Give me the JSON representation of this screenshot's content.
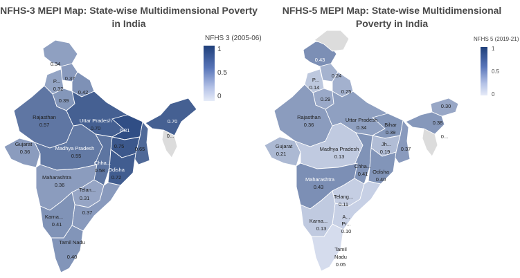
{
  "left": {
    "title": "NFHS-3 MEPI Map: State-wise Multidimensional Poverty in India",
    "legend": {
      "title": "NFHS 3 (2005-06)",
      "max": "1",
      "mid": "0.5",
      "min": "0"
    },
    "states": {
      "jk": {
        "value": 0.34,
        "value_text": "0.34"
      },
      "hp": {
        "value": 0.37,
        "value_text": "0.37"
      },
      "pb": {
        "name": "P...",
        "value": 0.32,
        "value_text": "0.32"
      },
      "uk": {
        "value": 0.42,
        "value_text": "0.42"
      },
      "hr": {
        "value": 0.39,
        "value_text": "0.39"
      },
      "rj": {
        "name": "Rajasthan",
        "value": 0.57,
        "value_text": "0.57"
      },
      "up": {
        "name": "Uttar Pradesh",
        "value": 0.7,
        "value_text": "0.70"
      },
      "br": {
        "value": 0.81,
        "value_text": "0.81"
      },
      "jh": {
        "value": 0.75,
        "value_text": "0.75"
      },
      "wb": {
        "value": 0.65,
        "value_text": "0.65"
      },
      "ne": {
        "value": 0.7,
        "value_text": "0.70"
      },
      "mz": {
        "name": "0...",
        "value": null
      },
      "gj": {
        "name": "Gujarat",
        "value": 0.36,
        "value_text": "0.36"
      },
      "mp": {
        "name": "Madhya Pradesh",
        "value": 0.55,
        "value_text": "0.55"
      },
      "cg": {
        "name": "Chha...",
        "value": 0.58,
        "value_text": "0.58"
      },
      "od": {
        "name": "Odisha",
        "value": 0.72,
        "value_text": "0.72"
      },
      "mh": {
        "name": "Maharashtra",
        "value": 0.36,
        "value_text": "0.36"
      },
      "tg": {
        "name": "Telan...",
        "value": 0.31,
        "value_text": "0.31"
      },
      "ap": {
        "value": 0.37,
        "value_text": "0.37"
      },
      "ka": {
        "name": "Karna...",
        "value": 0.41,
        "value_text": "0.41"
      },
      "tn": {
        "name": "Tamil Nadu",
        "value": 0.4,
        "value_text": "0.40"
      }
    }
  },
  "right": {
    "title": "NFHS-5 MEPI Map: State-wise Multidimensional Poverty in India",
    "legend": {
      "title": "NFHS 5 (2019-21)",
      "max": "1",
      "mid": "0.5",
      "min": "0"
    },
    "states": {
      "jk": {
        "value": 0.43,
        "value_text": "0.43"
      },
      "hp": {
        "value": 0.24,
        "value_text": "0.24"
      },
      "pb": {
        "name": "P...",
        "value": 0.14,
        "value_text": "0.14"
      },
      "uk": {
        "value": 0.25,
        "value_text": "0.25"
      },
      "hr": {
        "value": 0.29,
        "value_text": "0.29"
      },
      "rj": {
        "name": "Rajasthan",
        "value": 0.36,
        "value_text": "0.36"
      },
      "up": {
        "name": "Uttar Pradesh",
        "value": 0.34,
        "value_text": "0.34"
      },
      "br": {
        "name": "Bihar",
        "value": 0.39,
        "value_text": "0.39"
      },
      "jh": {
        "name": "Jh...",
        "value": 0.19,
        "value_text": "0.19"
      },
      "wb": {
        "value": 0.37,
        "value_text": "0.37"
      },
      "ar": {
        "value": 0.3,
        "value_text": "0.30"
      },
      "as": {
        "value": 0.38,
        "value_text": "0.38"
      },
      "mz": {
        "name": "0...",
        "value": null
      },
      "gj": {
        "name": "Gujarat",
        "value": 0.21,
        "value_text": "0.21"
      },
      "mp": {
        "name": "Madhya Pradesh",
        "value": 0.13,
        "value_text": "0.13"
      },
      "cg": {
        "name": "Chha...",
        "value": 0.41,
        "value_text": "0.41"
      },
      "od": {
        "name": "Odisha",
        "value": 0.4,
        "value_text": "0.40"
      },
      "mh": {
        "name": "Maharashtra",
        "value": 0.43,
        "value_text": "0.43"
      },
      "tg": {
        "name": "Telang...",
        "value": 0.11,
        "value_text": "0.11"
      },
      "ap": {
        "name_lines": [
          "A...",
          "Pr..."
        ],
        "value": 0.1,
        "value_text": "0.10"
      },
      "ka": {
        "name": "Karna...",
        "value": 0.13,
        "value_text": "0.13"
      },
      "tn": {
        "name_lines": [
          "Tamil",
          "Nadu"
        ],
        "value": 0.05,
        "value_text": "0.05"
      }
    }
  },
  "colors": {
    "na": "#dcdcdc",
    "scale_low": "#e6ebf8",
    "scale_high": "#1f3f7a"
  }
}
